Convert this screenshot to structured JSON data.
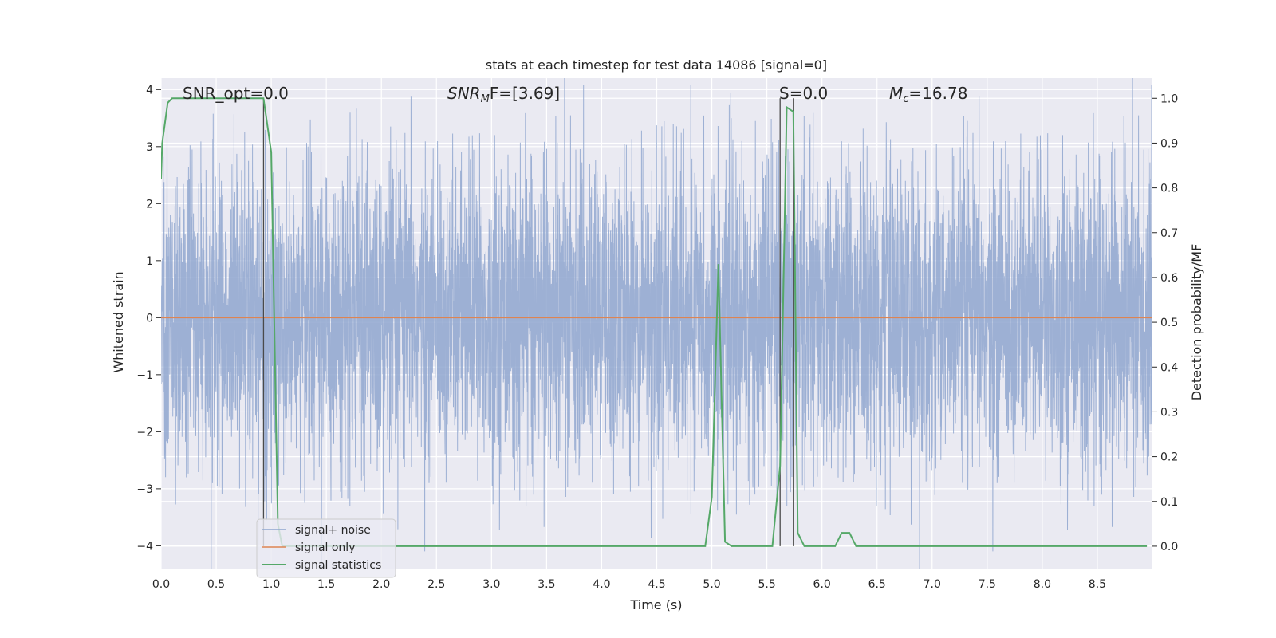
{
  "chart_data": {
    "type": "line",
    "title": "stats at each timestep for test data 14086 [signal=0]",
    "xlabel": "Time (s)",
    "ylabel": "Whitened strain",
    "ylabel_right": "Detection probability/MF",
    "xlim": [
      0.0,
      9.0
    ],
    "ylim": [
      -4.4,
      4.2
    ],
    "ylim_right": [
      -0.05,
      1.045
    ],
    "x_ticks": [
      0.0,
      0.5,
      1.0,
      1.5,
      2.0,
      2.5,
      3.0,
      3.5,
      4.0,
      4.5,
      5.0,
      5.5,
      6.0,
      6.5,
      7.0,
      7.5,
      8.0,
      8.5
    ],
    "x_tick_labels": [
      "0.0",
      "0.5",
      "1.0",
      "1.5",
      "2.0",
      "2.5",
      "3.0",
      "3.5",
      "4.0",
      "4.5",
      "5.0",
      "5.5",
      "6.0",
      "6.5",
      "7.0",
      "7.5",
      "8.0",
      "8.5"
    ],
    "y_ticks": [
      -4,
      -3,
      -2,
      -1,
      0,
      1,
      2,
      3,
      4
    ],
    "y_tick_labels": [
      "−4",
      "−3",
      "−2",
      "−1",
      "0",
      "1",
      "2",
      "3",
      "4"
    ],
    "y_right_ticks": [
      0.0,
      0.1,
      0.2,
      0.3,
      0.4,
      0.5,
      0.6,
      0.7,
      0.8,
      0.9,
      1.0
    ],
    "y_right_tick_labels": [
      "0.0",
      "0.1",
      "0.2",
      "0.3",
      "0.4",
      "0.5",
      "0.6",
      "0.7",
      "0.8",
      "0.9",
      "1.0"
    ],
    "grid": true,
    "legend_position": "bottom-left",
    "annotations": [
      {
        "text": "SNR_opt=0.0"
      },
      {
        "text": "SNRMF=[3.69]",
        "base": "SNR",
        "sub": "M",
        "rest": "F=[3.69]"
      },
      {
        "text": "S=0.0"
      },
      {
        "text": "Mc=16.78",
        "base": "M",
        "sub": "c",
        "rest": "=16.78"
      }
    ],
    "vlines_x": [
      0.93,
      5.62,
      5.74
    ],
    "series": [
      {
        "name": "signal+ noise",
        "axis": "left",
        "color": "#8fa6cf",
        "noise_envelope": {
          "core_amplitude": 1.3,
          "peak_max": 3.6,
          "duration": 9.0,
          "sample_rate": 2048
        }
      },
      {
        "name": "signal only",
        "axis": "left",
        "color": "#dd8452",
        "x": [
          0.0,
          9.0
        ],
        "y": [
          0.0,
          0.0
        ]
      },
      {
        "name": "signal statistics",
        "axis": "right",
        "color": "#55a868",
        "x": [
          0.0,
          0.01,
          0.06,
          0.1,
          0.2,
          0.3,
          0.5,
          0.7,
          0.9,
          0.93,
          1.0,
          1.06,
          1.1,
          1.2,
          2.0,
          3.0,
          4.0,
          4.94,
          5.0,
          5.06,
          5.12,
          5.18,
          5.3,
          5.55,
          5.62,
          5.68,
          5.74,
          5.78,
          5.84,
          5.9,
          6.0,
          6.12,
          6.18,
          6.25,
          6.31,
          6.4,
          7.0,
          8.0,
          8.95
        ],
        "y": [
          0.82,
          0.9,
          0.99,
          1.0,
          1.0,
          1.0,
          1.0,
          1.0,
          1.0,
          1.0,
          0.88,
          0.05,
          0.0,
          0.0,
          0.0,
          0.0,
          0.0,
          0.0,
          0.11,
          0.63,
          0.01,
          0.0,
          0.0,
          0.0,
          0.18,
          0.98,
          0.97,
          0.03,
          0.0,
          0.0,
          0.0,
          0.0,
          0.03,
          0.03,
          0.0,
          0.0,
          0.0,
          0.0,
          0.0
        ]
      }
    ]
  }
}
